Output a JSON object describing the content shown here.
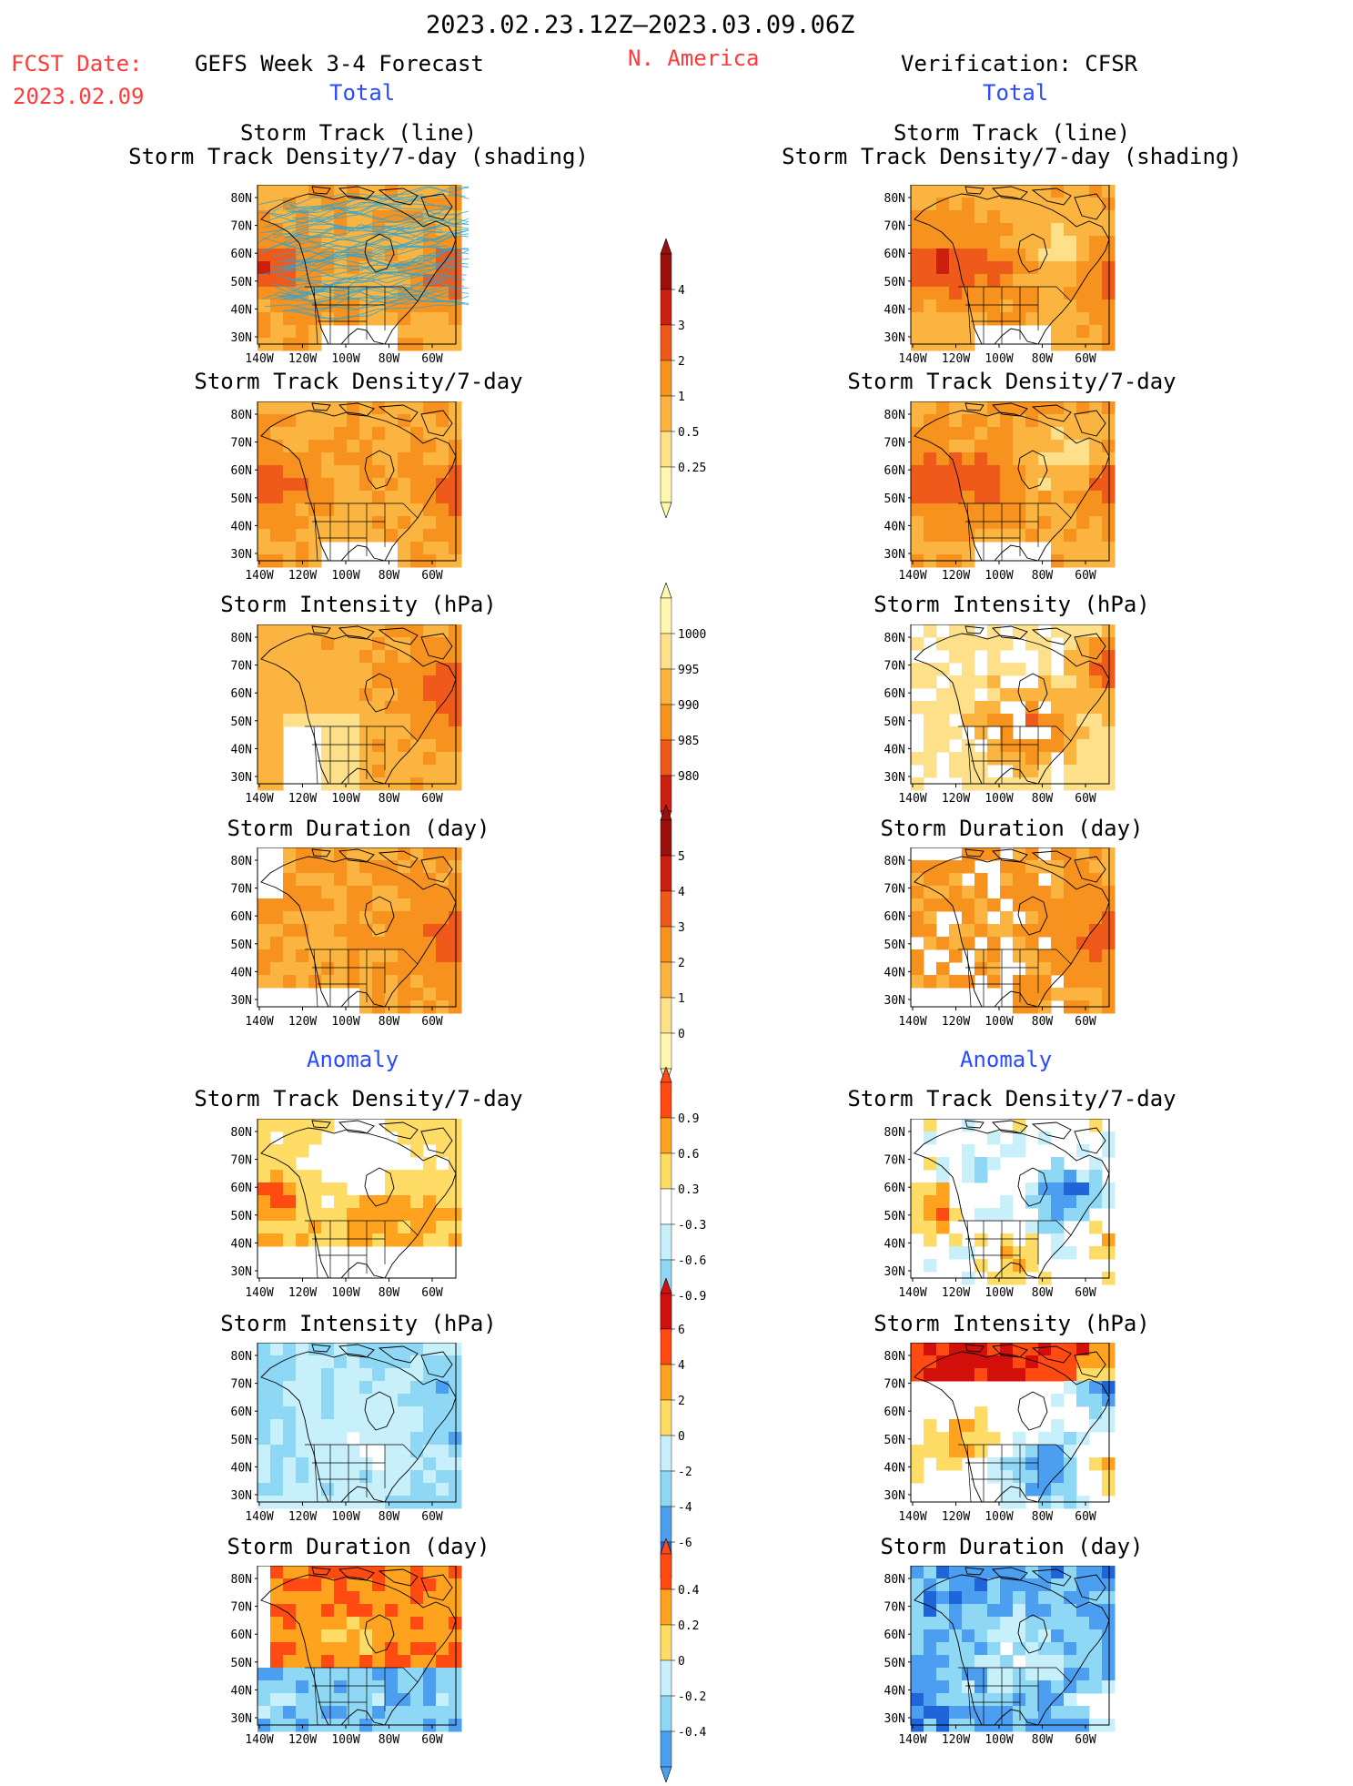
{
  "header": {
    "period": "2023.02.23.12Z–2023.03.09.06Z",
    "fcst_label": "FCST Date:",
    "fcst_date": "2023.02.09",
    "model": "GEFS Week 3-4 Forecast",
    "region": "N. America",
    "verification": "Verification: CFSR",
    "total_left": "Total",
    "total_right": "Total",
    "anomaly_left": "Anomaly",
    "anomaly_right": "Anomaly"
  },
  "panel_titles": {
    "track_line": "Storm Track (line)",
    "track_shading": "Storm Track Density/7-day (shading)",
    "density": "Storm Track Density/7-day",
    "intensity": "Storm Intensity (hPa)",
    "duration": "Storm Duration (day)"
  },
  "axes": {
    "lat": [
      "80N",
      "70N",
      "60N",
      "50N",
      "40N",
      "30N"
    ],
    "lon": [
      "140W",
      "120W",
      "100W",
      "80W",
      "60W"
    ]
  },
  "colorbars": {
    "density_total": [
      "4",
      "3",
      "2",
      "1",
      "0.5",
      "0.25"
    ],
    "intensity_total": [
      "1000",
      "995",
      "990",
      "985",
      "980"
    ],
    "duration_total": [
      "5",
      "4",
      "3",
      "2",
      "1",
      "0"
    ],
    "density_anom": [
      "0.9",
      "0.6",
      "0.3",
      "-0.3",
      "-0.6",
      "-0.9"
    ],
    "intensity_anom": [
      "6",
      "4",
      "2",
      "0",
      "-2",
      "-4",
      "-6"
    ],
    "duration_anom": [
      "0.4",
      "0.2",
      "0",
      "-0.2",
      "-0.4"
    ]
  },
  "colors": {
    "total_scale": [
      "#fff7b0",
      "#fde089",
      "#fbb440",
      "#f7921e",
      "#ef5a1a",
      "#cc1f0f",
      "#9a0f0a"
    ],
    "anom_pos": [
      "#ffdc66",
      "#ffa21e",
      "#ff4a12",
      "#d20f0a"
    ],
    "anom_neg": [
      "#c8f0fb",
      "#8fd8f5",
      "#4c9ff0",
      "#1f64d8"
    ],
    "track_line": "#2aa5d6"
  }
}
